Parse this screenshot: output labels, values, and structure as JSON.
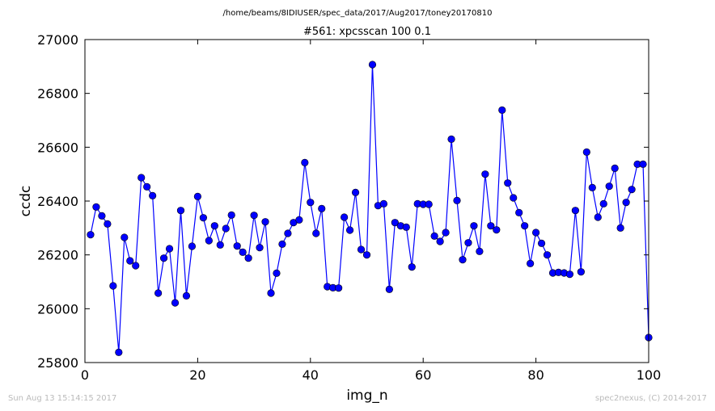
{
  "chart_data": {
    "type": "line",
    "suptitle": "/home/beams/8IDIUSER/spec_data/2017/Aug2017/toney20170810",
    "title": "#561: xpcsscan 100 0.1",
    "xlabel": "img_n",
    "ylabel": "ccdc",
    "xlim": [
      0,
      100
    ],
    "ylim": [
      25800,
      27000
    ],
    "xticks": [
      0,
      20,
      40,
      60,
      80,
      100
    ],
    "yticks": [
      25800,
      26000,
      26200,
      26400,
      26600,
      26800,
      27000
    ],
    "grid": false,
    "marker": "circle",
    "series": [
      {
        "color": "#0000ff",
        "x": [
          1,
          2,
          3,
          4,
          5,
          6,
          7,
          8,
          9,
          10,
          11,
          12,
          13,
          14,
          15,
          16,
          17,
          18,
          19,
          20,
          21,
          22,
          23,
          24,
          25,
          26,
          27,
          28,
          29,
          30,
          31,
          32,
          33,
          34,
          35,
          36,
          37,
          38,
          39,
          40,
          41,
          42,
          43,
          44,
          45,
          46,
          47,
          48,
          49,
          50,
          51,
          52,
          53,
          54,
          55,
          56,
          57,
          58,
          59,
          60,
          61,
          62,
          63,
          64,
          65,
          66,
          67,
          68,
          69,
          70,
          71,
          72,
          73,
          74,
          75,
          76,
          77,
          78,
          79,
          80,
          81,
          82,
          83,
          84,
          85,
          86,
          87,
          88,
          89,
          90,
          91,
          92,
          93,
          94,
          95,
          96,
          97,
          98,
          99,
          100
        ],
        "y": [
          26275,
          26378,
          26345,
          26315,
          26085,
          25838,
          26265,
          26178,
          26160,
          26487,
          26453,
          26420,
          26058,
          26188,
          26223,
          26022,
          26365,
          26048,
          26232,
          26417,
          26338,
          26253,
          26308,
          26237,
          26298,
          26348,
          26233,
          26210,
          26188,
          26347,
          26227,
          26323,
          26058,
          26132,
          26240,
          26280,
          26320,
          26330,
          26543,
          26395,
          26280,
          26372,
          26082,
          26078,
          26077,
          26340,
          26292,
          26432,
          26220,
          26200,
          26907,
          26383,
          26390,
          26072,
          26320,
          26308,
          26303,
          26155,
          26390,
          26388,
          26388,
          26270,
          26250,
          26283,
          26630,
          26402,
          26182,
          26245,
          26308,
          26213,
          26500,
          26308,
          26293,
          26738,
          26467,
          26412,
          26357,
          26308,
          26168,
          26283,
          26243,
          26200,
          26133,
          26135,
          26133,
          26128,
          26365,
          26137,
          26582,
          26450,
          26340,
          26390,
          26455,
          26522,
          26300,
          26395,
          26443,
          26537,
          26537,
          25893
        ]
      }
    ]
  },
  "footer": {
    "timestamp": "Sun Aug 13 15:14:15 2017",
    "credit": "spec2nexus, (C) 2014-2017"
  }
}
